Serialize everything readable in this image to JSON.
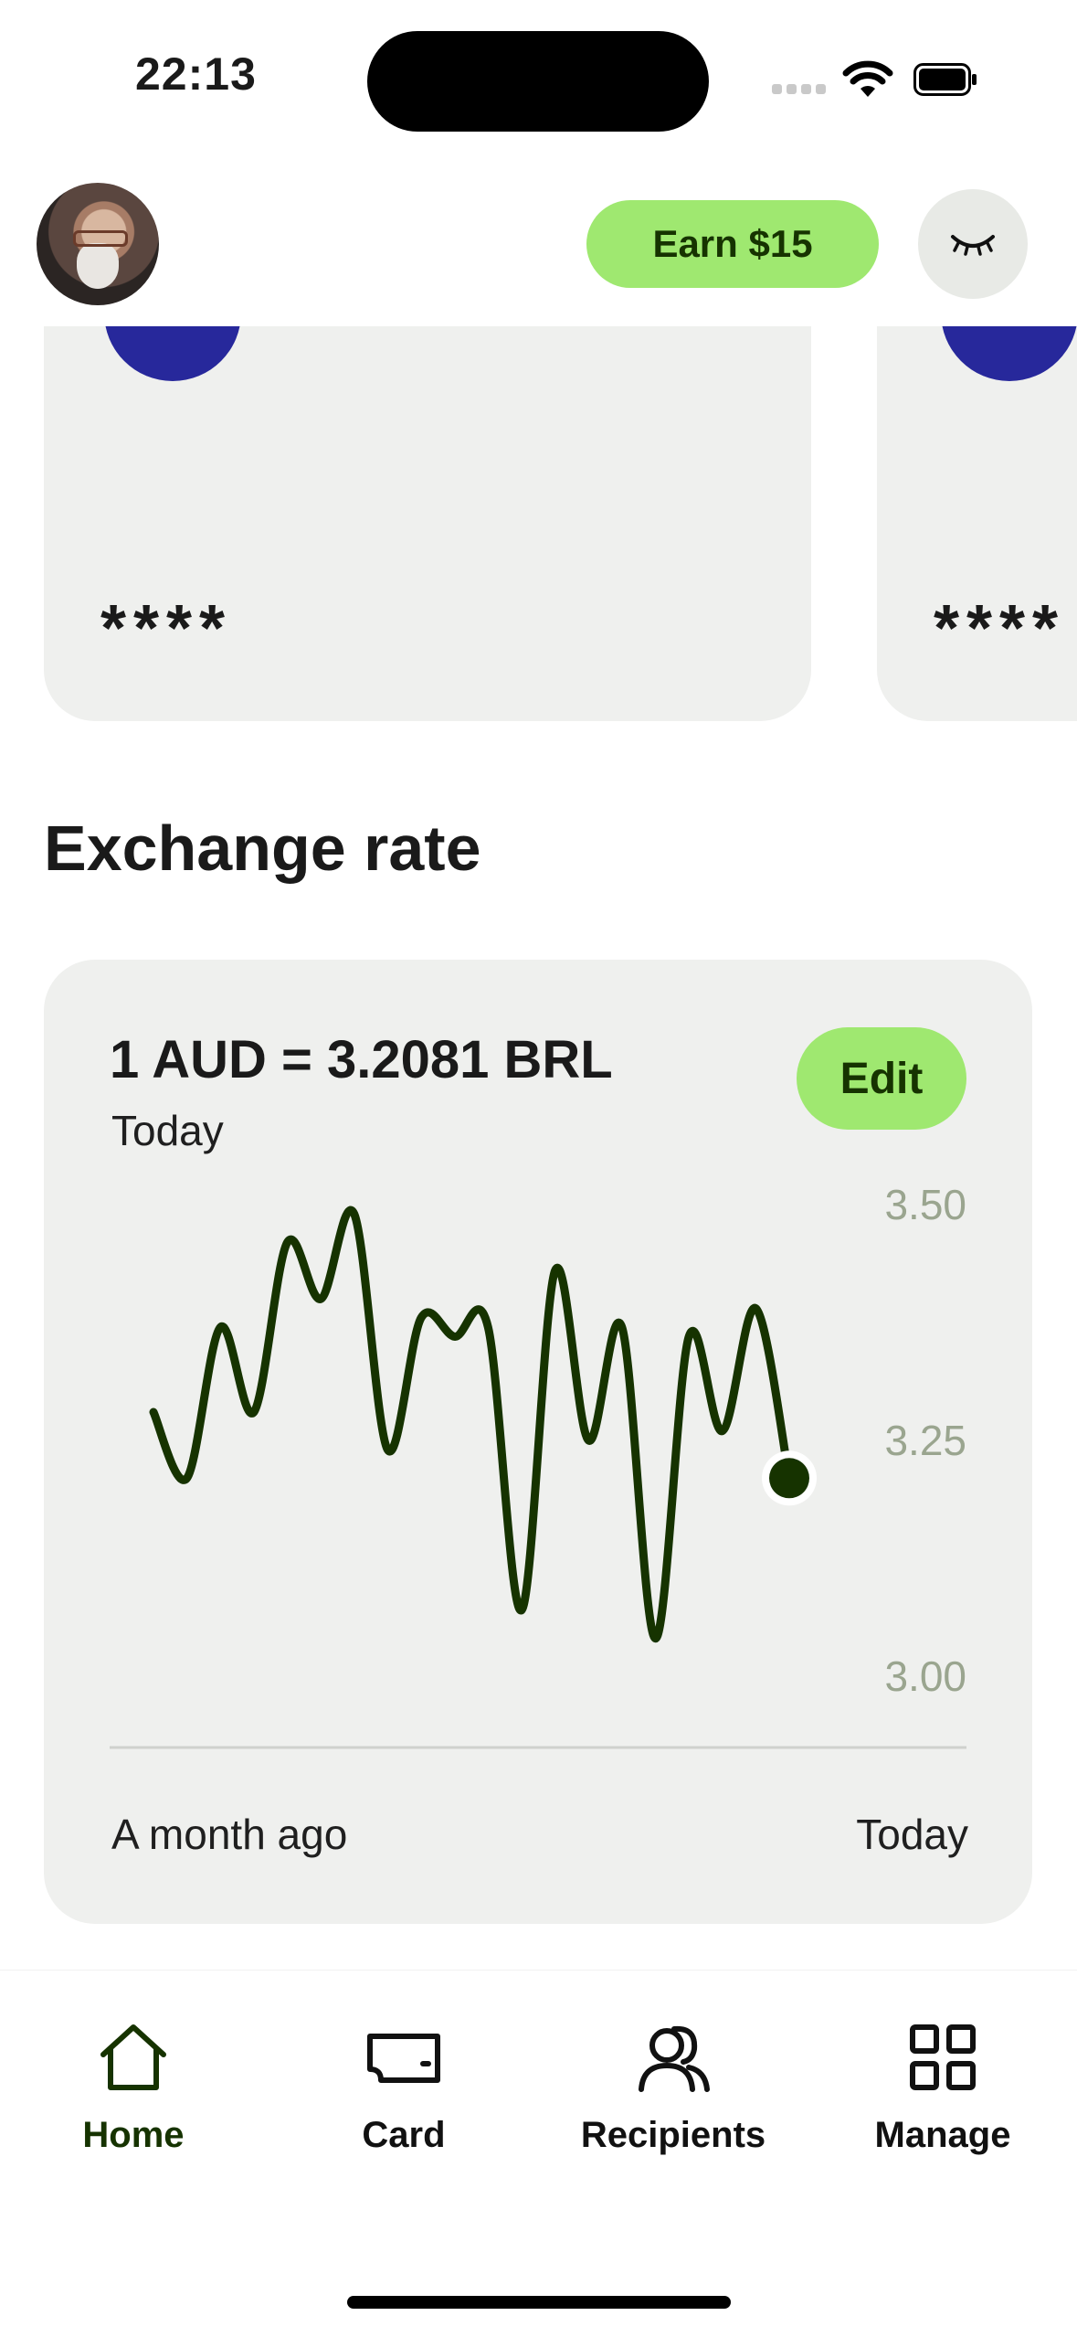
{
  "status_bar": {
    "time": "22:13",
    "icons": [
      "signal-icon",
      "wifi-icon",
      "battery-icon"
    ]
  },
  "header": {
    "earn_label": "Earn $15",
    "hide_icon": "closed-eye-icon",
    "accent_color": "#9fe870"
  },
  "accounts": {
    "cards": [
      {
        "masked_balance": "****",
        "flag_color": "#27289b"
      },
      {
        "masked_balance": "****",
        "flag_color": "#27289b"
      }
    ]
  },
  "exchange": {
    "section_title": "Exchange rate",
    "rate_text": "1 AUD = 3.2081 BRL",
    "rate_date": "Today",
    "edit_label": "Edit",
    "x_start_label": "A month ago",
    "x_end_label": "Today",
    "line_color": "#163300",
    "tick_color": "#9aa58f"
  },
  "chart_data": {
    "type": "line",
    "title": "",
    "xlabel": "",
    "ylabel": "",
    "x_range": [
      "A month ago",
      "Today"
    ],
    "ylim": [
      3.0,
      3.5
    ],
    "yticks": [
      3.5,
      3.25,
      3.0
    ],
    "ytick_labels": [
      "3.50",
      "3.25",
      "3.00"
    ],
    "grid": false,
    "values": [
      3.28,
      3.21,
      3.37,
      3.28,
      3.46,
      3.4,
      3.49,
      3.24,
      3.38,
      3.36,
      3.37,
      3.07,
      3.43,
      3.25,
      3.37,
      3.04,
      3.36,
      3.26,
      3.39,
      3.21
    ]
  },
  "bottom_nav": {
    "items": [
      {
        "label": "Home",
        "icon": "home-icon",
        "active": true
      },
      {
        "label": "Card",
        "icon": "card-icon",
        "active": false
      },
      {
        "label": "Recipients",
        "icon": "recipients-icon",
        "active": false
      },
      {
        "label": "Manage",
        "icon": "grid-icon",
        "active": false
      }
    ]
  }
}
